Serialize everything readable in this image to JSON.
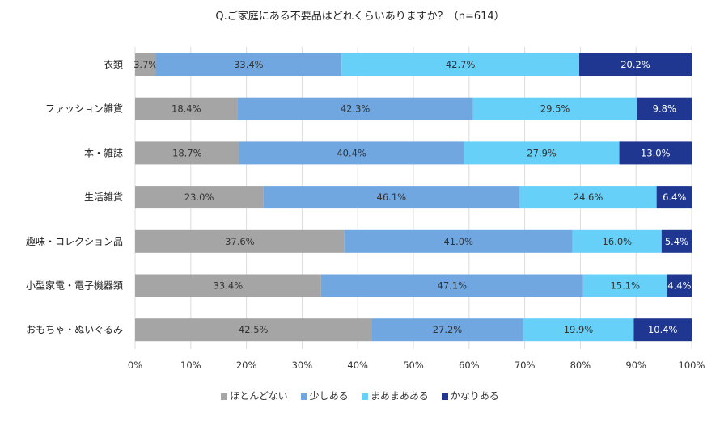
{
  "chart_data": {
    "type": "bar",
    "orientation": "horizontal",
    "stacked": true,
    "title": "Q.ご家庭にある不要品はどれくらいありますか？（n=614）",
    "categories": [
      "衣類",
      "ファッション雑貨",
      "本・雑誌",
      "生活雑貨",
      "趣味・コレクション品",
      "小型家電・電子機器類",
      "おもちゃ・ぬいぐるみ"
    ],
    "series": [
      {
        "name": "ほとんどない",
        "color": "#a5a5a5",
        "values": [
          3.7,
          18.4,
          18.7,
          23.0,
          37.6,
          33.4,
          42.5
        ]
      },
      {
        "name": "少しある",
        "color": "#70a7e0",
        "values": [
          33.4,
          42.3,
          40.4,
          46.1,
          41.0,
          47.1,
          27.2
        ]
      },
      {
        "name": "まあまあある",
        "color": "#66d0f8",
        "values": [
          42.7,
          29.5,
          27.9,
          24.6,
          16.0,
          15.1,
          19.9
        ]
      },
      {
        "name": "かなりある",
        "color": "#1f3790",
        "values": [
          20.2,
          9.8,
          13.0,
          6.4,
          5.4,
          4.4,
          10.4
        ]
      }
    ],
    "xlim": [
      0,
      100
    ],
    "xticks": [
      "0%",
      "10%",
      "20%",
      "30%",
      "40%",
      "50%",
      "60%",
      "70%",
      "80%",
      "90%",
      "100%"
    ],
    "grid": true,
    "legend_position": "bottom"
  }
}
